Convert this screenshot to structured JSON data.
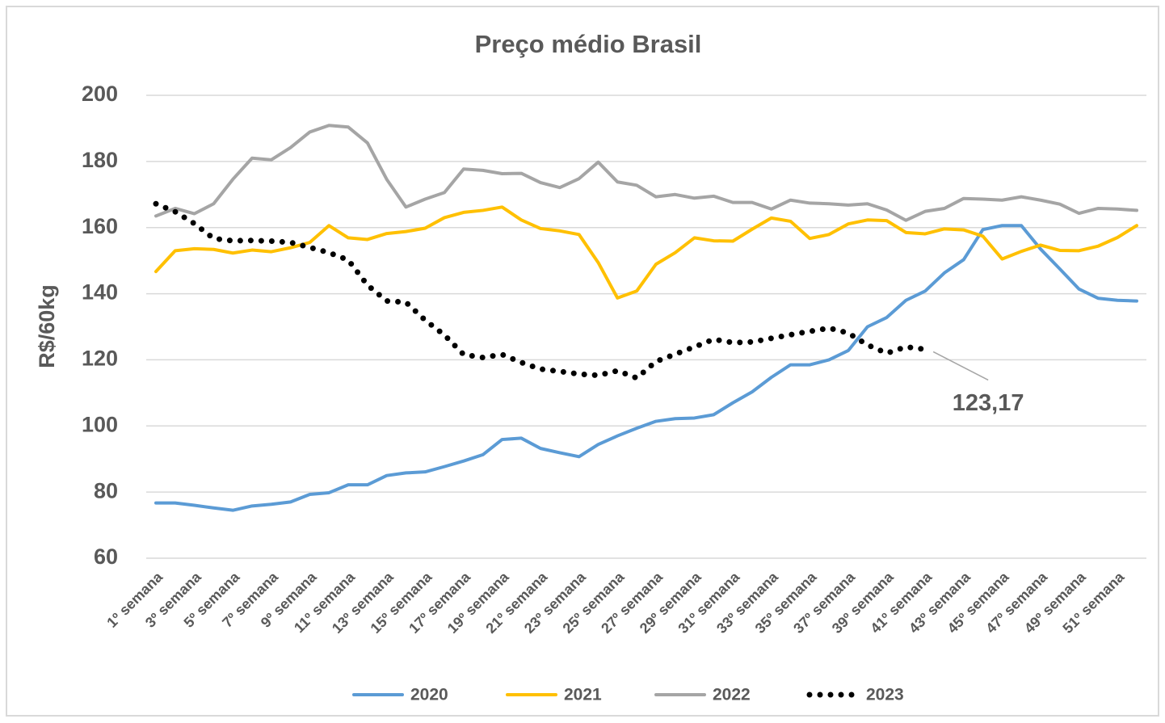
{
  "chart_data": {
    "type": "line",
    "title": "Preço médio Brasil",
    "y_label": "R$/60kg",
    "categories": [
      "1º semana",
      null,
      "3º semana",
      null,
      "5º semana",
      null,
      "7º semana",
      null,
      "9º semana",
      null,
      "11º semana",
      null,
      "13º semana",
      null,
      "15º semana",
      null,
      "17º semana",
      null,
      "19º semana",
      null,
      "21º semana",
      null,
      "23º semana",
      null,
      "25º semana",
      null,
      "27º semana",
      null,
      "29º semana",
      null,
      "31º semana",
      null,
      "33º semana",
      null,
      "35º semana",
      null,
      "37º semana",
      null,
      "39º semana",
      null,
      "41º semana",
      null,
      "43º semana",
      null,
      "45º semana",
      null,
      "47º semana",
      null,
      "49º semana",
      null,
      "51º semana",
      null
    ],
    "series": [
      {
        "name": "2020",
        "color": "#5b9bd5",
        "values": [
          76.7,
          76.7,
          76,
          75.2,
          74.5,
          75.8,
          76.3,
          77,
          79.3,
          79.8,
          82.2,
          82.2,
          85,
          85.8,
          86.1,
          87.7,
          89.4,
          91.3,
          95.9,
          96.3,
          93.2,
          91.9,
          90.7,
          94.4,
          97,
          99.3,
          101.4,
          102.2,
          102.4,
          103.4,
          107,
          110.3,
          114.7,
          118.5,
          118.5,
          120,
          122.8,
          130,
          132.8,
          138,
          140.8,
          146.3,
          150.3,
          159.4,
          160.6,
          160.6,
          153.5,
          147.5,
          141.4,
          138.6,
          138,
          137.8
        ]
      },
      {
        "name": "2021",
        "color": "#ffc000",
        "values": [
          146.7,
          153,
          153.6,
          153.4,
          152.3,
          153.2,
          152.7,
          153.9,
          155.5,
          160.6,
          156.9,
          156.4,
          158.2,
          158.8,
          159.8,
          163,
          164.6,
          165.2,
          166.2,
          162.3,
          159.7,
          159,
          157.9,
          149.4,
          138.7,
          140.8,
          148.9,
          152.4,
          156.9,
          156,
          155.9,
          159.5,
          162.9,
          161.9,
          156.7,
          157.9,
          161.1,
          162.3,
          162.1,
          158.5,
          158.1,
          159.6,
          159.3,
          157.4,
          150.5,
          152.8,
          154.7,
          153.1,
          153,
          154.4,
          157,
          160.6
        ]
      },
      {
        "name": "2022",
        "color": "#a5a5a5",
        "values": [
          163.5,
          165.8,
          164.2,
          167.2,
          174.6,
          181,
          180.5,
          184.2,
          188.9,
          190.9,
          190.4,
          185.6,
          174.6,
          166.2,
          168.6,
          170.6,
          177.7,
          177.3,
          176.3,
          176.4,
          173.6,
          172.1,
          174.8,
          179.8,
          173.8,
          172.8,
          169.3,
          170,
          168.9,
          169.5,
          167.6,
          167.6,
          165.6,
          168.3,
          167.4,
          167.2,
          166.8,
          167.2,
          165.3,
          162.2,
          164.9,
          165.8,
          168.8,
          168.6,
          168.3,
          169.3,
          168.3,
          167.1,
          164.3,
          165.8,
          165.6,
          165.2
        ]
      },
      {
        "name": "2023",
        "color": "#000000",
        "dotted": true,
        "values": [
          167.2,
          164.8,
          161.2,
          156.7,
          156,
          156.1,
          155.9,
          155.5,
          154,
          152.4,
          150.2,
          142.6,
          137.8,
          137.4,
          132,
          127.5,
          121.6,
          120.7,
          121.6,
          119.2,
          117.2,
          116.5,
          115.7,
          115.3,
          116.7,
          114.5,
          119.5,
          121.7,
          123.9,
          126.2,
          125.2,
          125.4,
          126.5,
          127.6,
          128.6,
          129.6,
          128.1,
          124.5,
          122,
          123.9,
          123.17,
          null,
          null,
          null,
          null,
          null,
          null,
          null,
          null,
          null,
          null,
          null
        ],
        "value_labels": [
          null,
          null,
          null,
          null,
          null,
          null,
          null,
          null,
          null,
          null,
          null,
          null,
          null,
          null,
          null,
          null,
          null,
          null,
          null,
          null,
          null,
          null,
          null,
          null,
          null,
          null,
          null,
          null,
          null,
          null,
          null,
          null,
          null,
          null,
          null,
          null,
          null,
          null,
          null,
          null,
          "123,17",
          null,
          null,
          null,
          null,
          null,
          null,
          null,
          null,
          null,
          null,
          null
        ]
      }
    ],
    "ylim": [
      60,
      200
    ],
    "yticks": [
      60,
      80,
      100,
      120,
      140,
      160,
      180,
      200
    ],
    "grid": true,
    "legend": "bottom"
  }
}
